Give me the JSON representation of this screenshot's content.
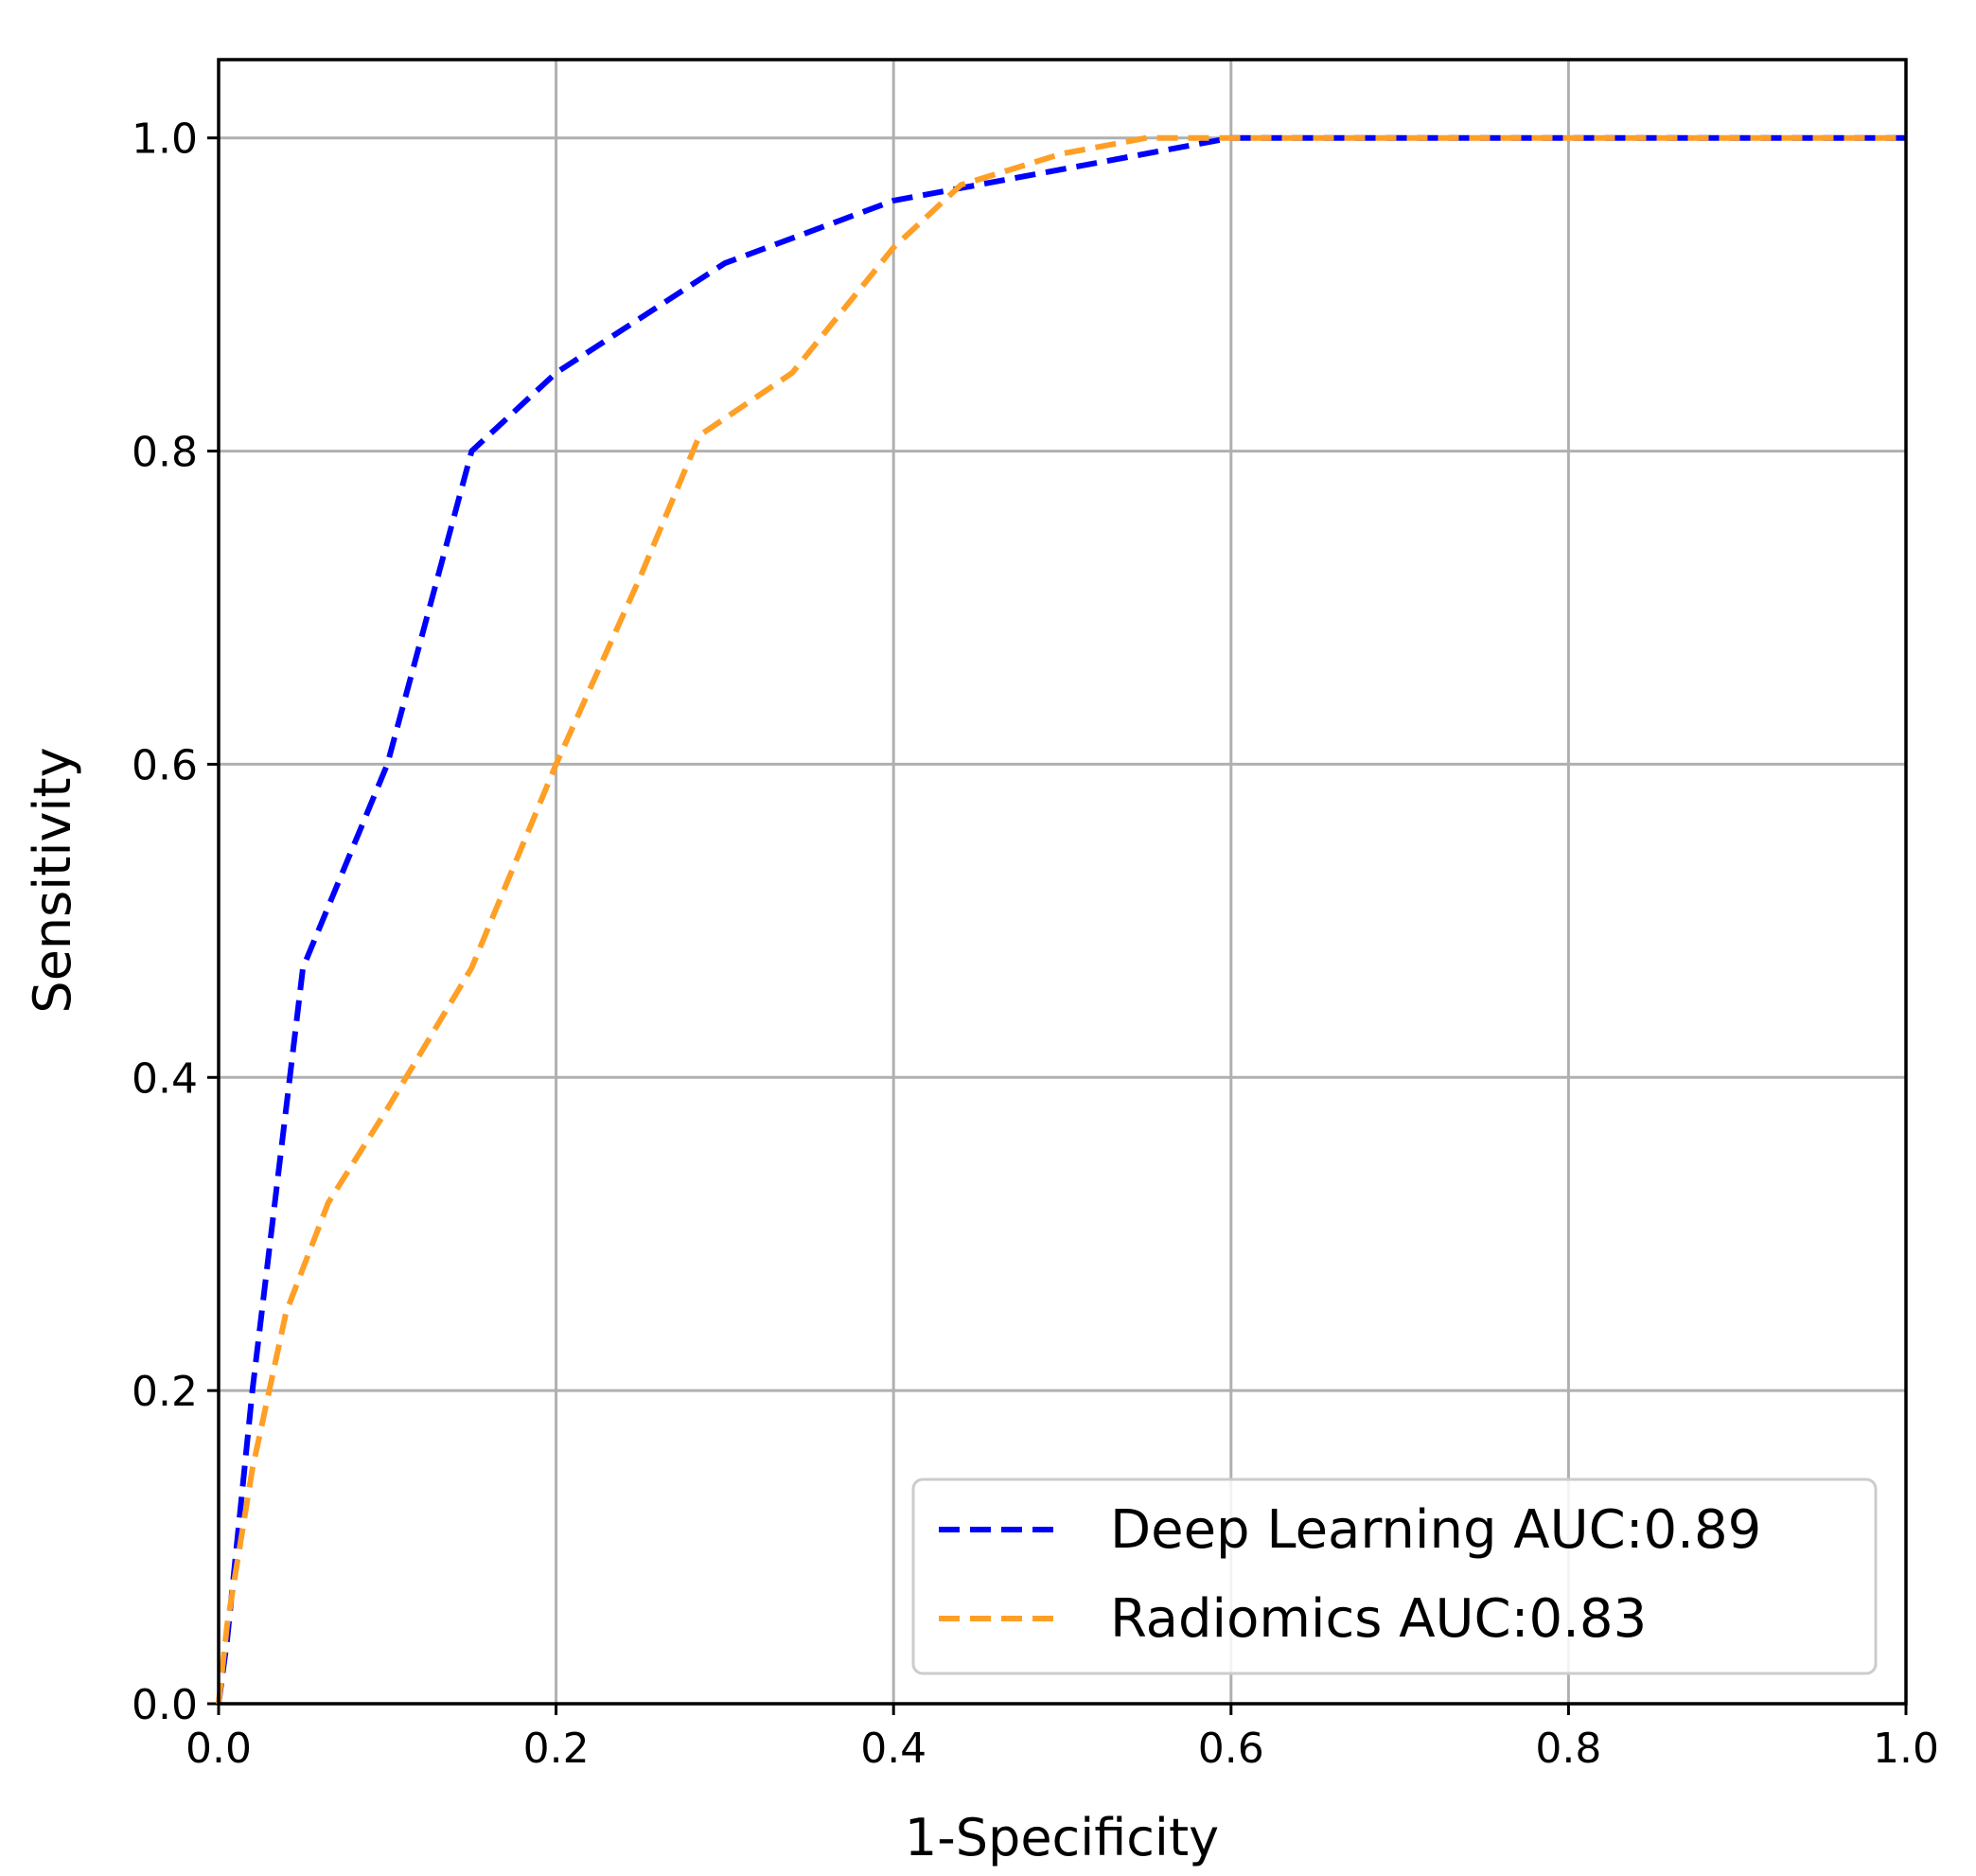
{
  "chart_data": {
    "type": "line",
    "title": "",
    "xlabel": "1-Specificity",
    "ylabel": "Sensitivity",
    "xlim": [
      0.0,
      1.0
    ],
    "ylim": [
      0.0,
      1.05
    ],
    "xticks": [
      "0.0",
      "0.2",
      "0.4",
      "0.6",
      "0.8",
      "1.0"
    ],
    "yticks": [
      "0.0",
      "0.2",
      "0.4",
      "0.6",
      "0.8",
      "1.0"
    ],
    "grid": true,
    "legend_position": "lower-right",
    "series": [
      {
        "name": "Deep Learning AUC:0.89",
        "color": "#0000ff",
        "line_style": "dashed",
        "x": [
          0.0,
          0.005,
          0.02,
          0.04,
          0.05,
          0.1,
          0.15,
          0.2,
          0.3,
          0.4,
          0.5,
          0.6,
          0.7,
          0.8,
          0.9,
          1.0
        ],
        "y": [
          0.0,
          0.04,
          0.2,
          0.38,
          0.47,
          0.6,
          0.8,
          0.85,
          0.92,
          0.96,
          0.98,
          1.0,
          1.0,
          1.0,
          1.0,
          1.0
        ]
      },
      {
        "name": "Radiomics AUC:0.83",
        "color": "#ff9f26",
        "line_style": "dashed",
        "x": [
          0.0,
          0.005,
          0.02,
          0.04,
          0.065,
          0.1,
          0.15,
          0.2,
          0.25,
          0.285,
          0.34,
          0.4,
          0.44,
          0.5,
          0.55,
          0.6,
          0.7,
          0.8,
          0.9,
          1.0
        ],
        "y": [
          0.0,
          0.05,
          0.15,
          0.25,
          0.32,
          0.38,
          0.47,
          0.6,
          0.72,
          0.81,
          0.85,
          0.93,
          0.97,
          0.99,
          1.0,
          1.0,
          1.0,
          1.0,
          1.0,
          1.0
        ]
      }
    ]
  }
}
